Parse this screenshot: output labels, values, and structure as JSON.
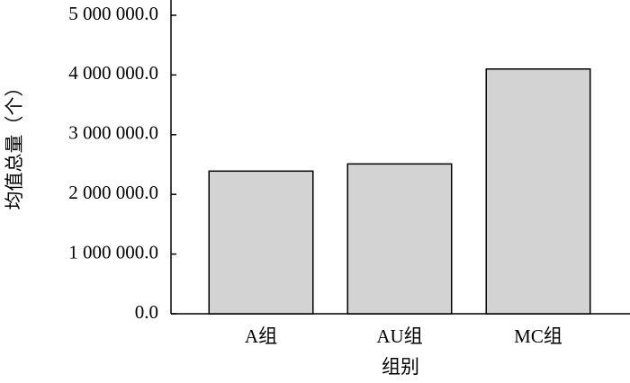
{
  "chart_data": {
    "type": "bar",
    "x_label": "组别",
    "y_label": "均值总量（个）",
    "categories": [
      "A组",
      "AU组",
      "MC组"
    ],
    "values": [
      2390000,
      2510000,
      4100000
    ],
    "color": "#d3d3d3",
    "ylim": [
      0,
      5000000
    ],
    "yticks": [
      {
        "value": 0,
        "label": "0.0"
      },
      {
        "value": 1000000,
        "label": "1 000 000.0"
      },
      {
        "value": 2000000,
        "label": "2 000 000.0"
      },
      {
        "value": 3000000,
        "label": "3 000 000.0"
      },
      {
        "value": 4000000,
        "label": "4 000 000.0"
      },
      {
        "value": 5000000,
        "label": "5 000 000.0"
      }
    ]
  }
}
